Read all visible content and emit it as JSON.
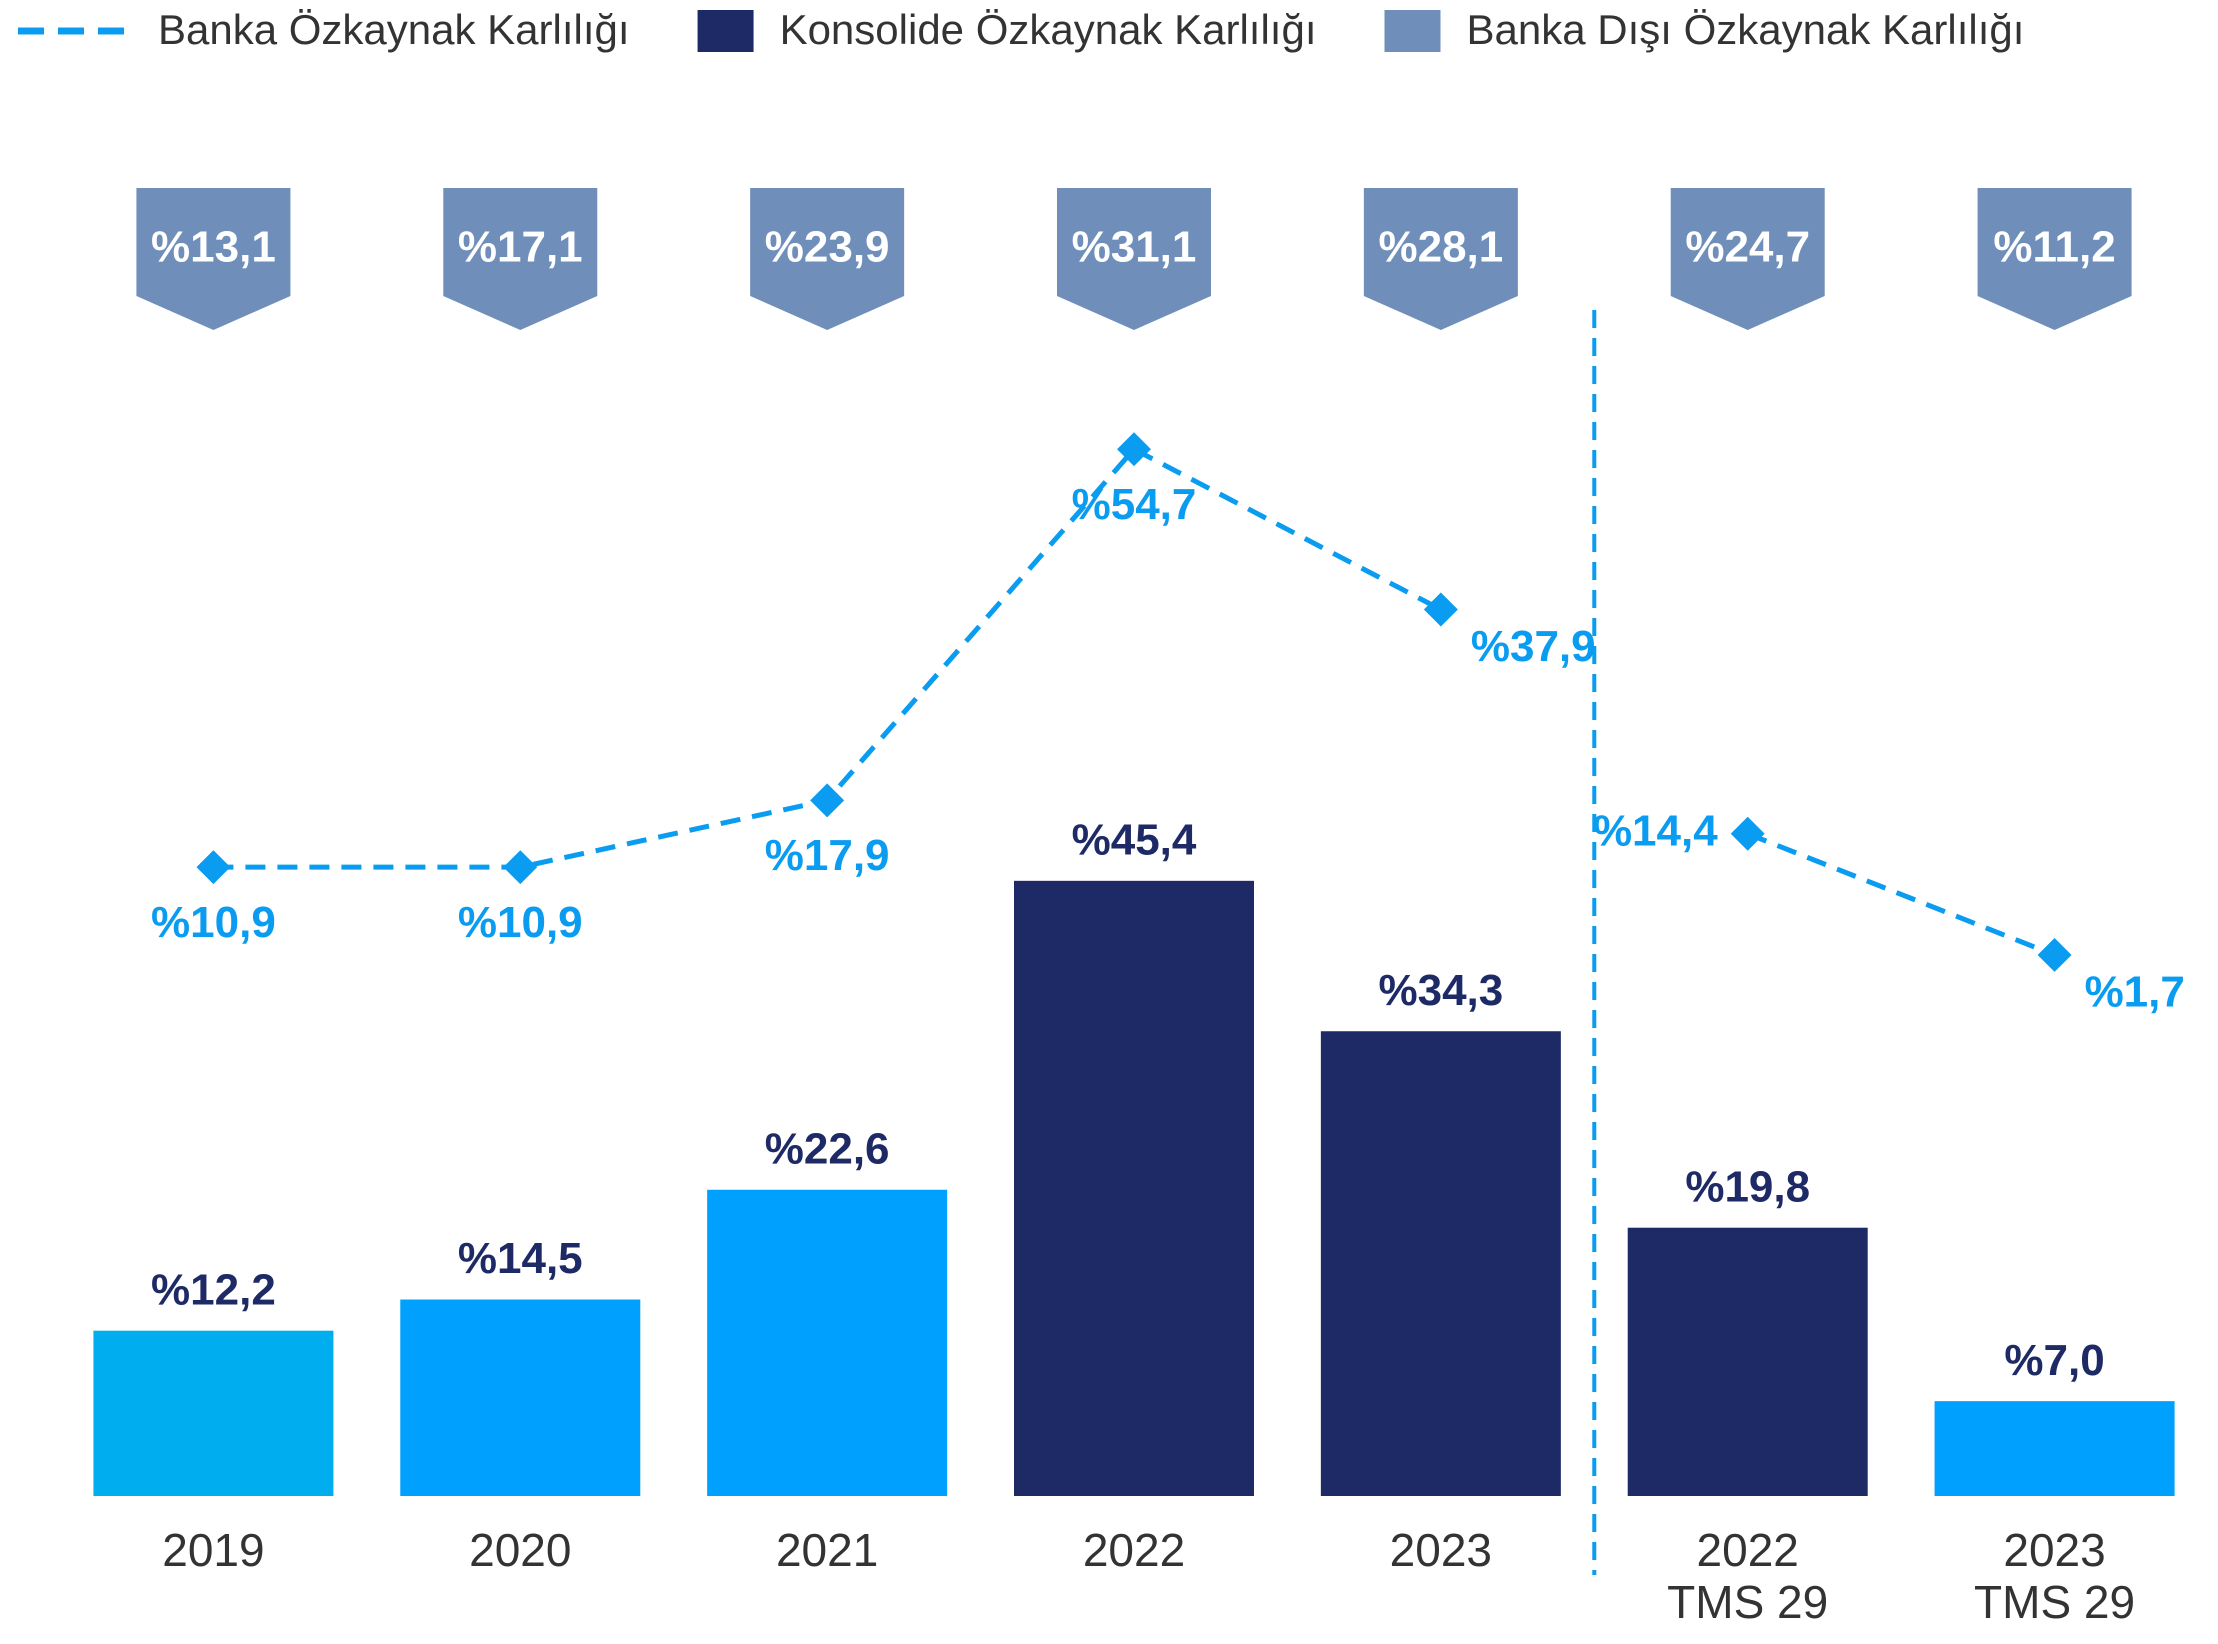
{
  "chart_data": {
    "type": "bar",
    "categories": [
      "2019",
      "2020",
      "2021",
      "2022",
      "2023",
      "2022 TMS 29",
      "2023 TMS 29"
    ],
    "ylim": [
      0,
      100
    ],
    "y2lim": [
      -55,
      87
    ],
    "divider_after": 4,
    "series": [
      {
        "name": "Konsolide Özkaynak Karlılığı",
        "type": "bar",
        "color": "#1e2a66",
        "colors": [
          "#00aeef",
          "#00a0ff",
          "#00a0ff",
          "#1e2a66",
          "#1e2a66",
          "#1e2a66",
          "#00a0ff"
        ],
        "values": [
          12.2,
          14.5,
          22.6,
          45.4,
          34.3,
          19.8,
          7.0
        ],
        "value_labels": [
          "%12,2",
          "%14,5",
          "%22,6",
          "%45,4",
          "%34,3",
          "%19,8",
          "%7,0"
        ]
      },
      {
        "name": "Banka Özkaynak Karlılığı",
        "type": "line",
        "axis": "y2",
        "color": "#0a9cf0",
        "values": [
          10.9,
          10.9,
          17.9,
          54.7,
          37.9,
          14.4,
          1.7
        ],
        "value_labels": [
          "%10,9",
          "%10,9",
          "%17,9",
          "%54,7",
          "%37,9",
          "%14,4",
          "%1,7"
        ]
      },
      {
        "name": "Banka Dışı Özkaynak Karlılığı",
        "type": "badge",
        "color": "#6f8fba",
        "values": [
          13.1,
          17.1,
          23.9,
          31.1,
          28.1,
          24.7,
          11.2
        ],
        "value_labels": [
          "%13,1",
          "%17,1",
          "%23,9",
          "%31,1",
          "%28,1",
          "%24,7",
          "%11,2"
        ]
      }
    ]
  }
}
